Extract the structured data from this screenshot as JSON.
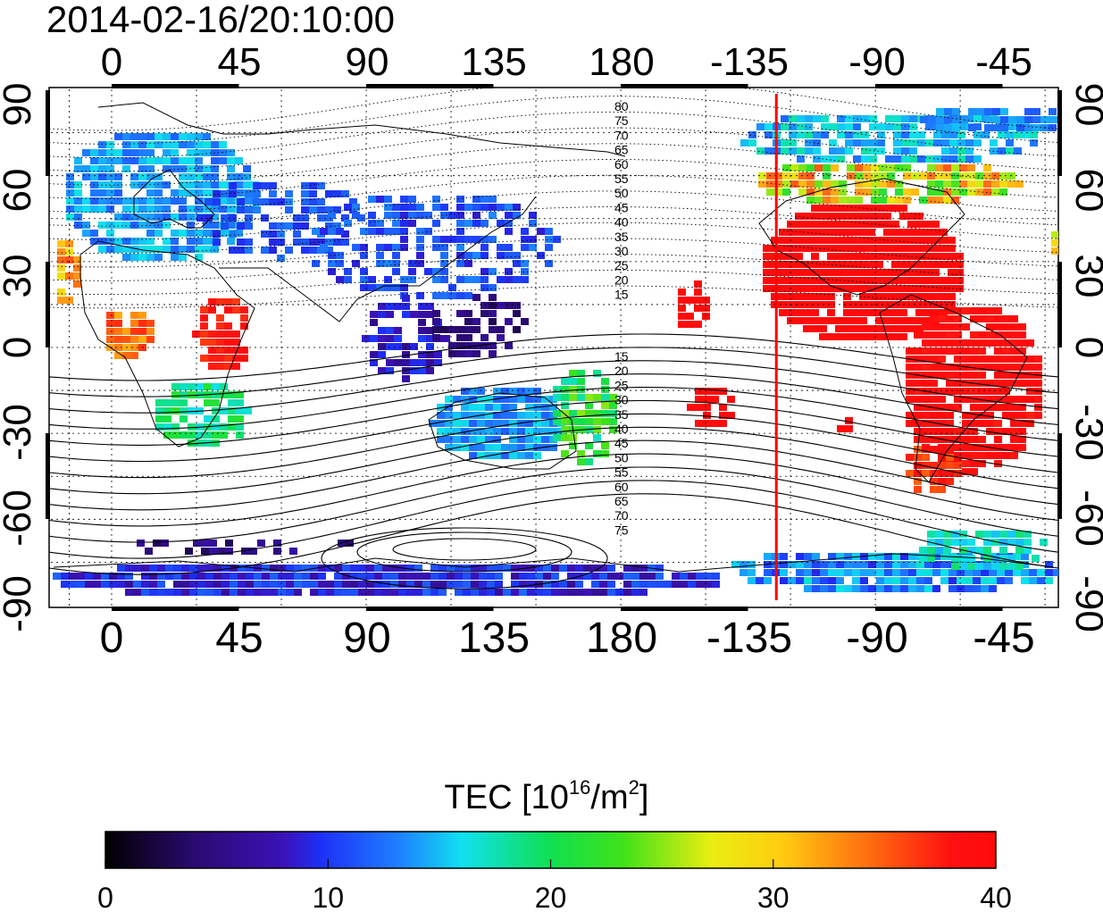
{
  "timestamp": "2014-02-16/20:10:00",
  "map": {
    "top_lon_ticks": [
      "0",
      "45",
      "90",
      "135",
      "180",
      "-135",
      "-90",
      "-45"
    ],
    "bottom_lon_ticks": [
      "0",
      "45",
      "90",
      "135",
      "180",
      "-135",
      "-90",
      "-45"
    ],
    "left_lat_ticks": [
      "90",
      "60",
      "30",
      "0",
      "-30",
      "-60",
      "-90"
    ],
    "right_lat_ticks": [
      "90",
      "60",
      "30",
      "0",
      "-30",
      "-60",
      "-90"
    ],
    "marker_longitude": -125,
    "marker_color": "#ff0000",
    "north_mlat_labels": [
      "80",
      "75",
      "70",
      "65",
      "60",
      "55",
      "50",
      "45",
      "40",
      "35",
      "30",
      "25",
      "20",
      "15"
    ],
    "south_mlat_labels": [
      "15",
      "20",
      "25",
      "30",
      "35",
      "40",
      "45",
      "50",
      "55",
      "60",
      "65",
      "70",
      "75"
    ]
  },
  "colorbar": {
    "title_main": "TEC  [10",
    "title_sup1": "16",
    "title_mid": "/m",
    "title_sup2": "2",
    "title_end": "]",
    "tick_labels": [
      "0",
      "10",
      "20",
      "30",
      "40"
    ],
    "min": 0,
    "max": 40,
    "colors": [
      "#000000",
      "#3a0a8a",
      "#1f2ff0",
      "#1e80ff",
      "#13e6e6",
      "#1ee21e",
      "#e6ee12",
      "#ff8c10",
      "#ff0a0a"
    ]
  }
}
